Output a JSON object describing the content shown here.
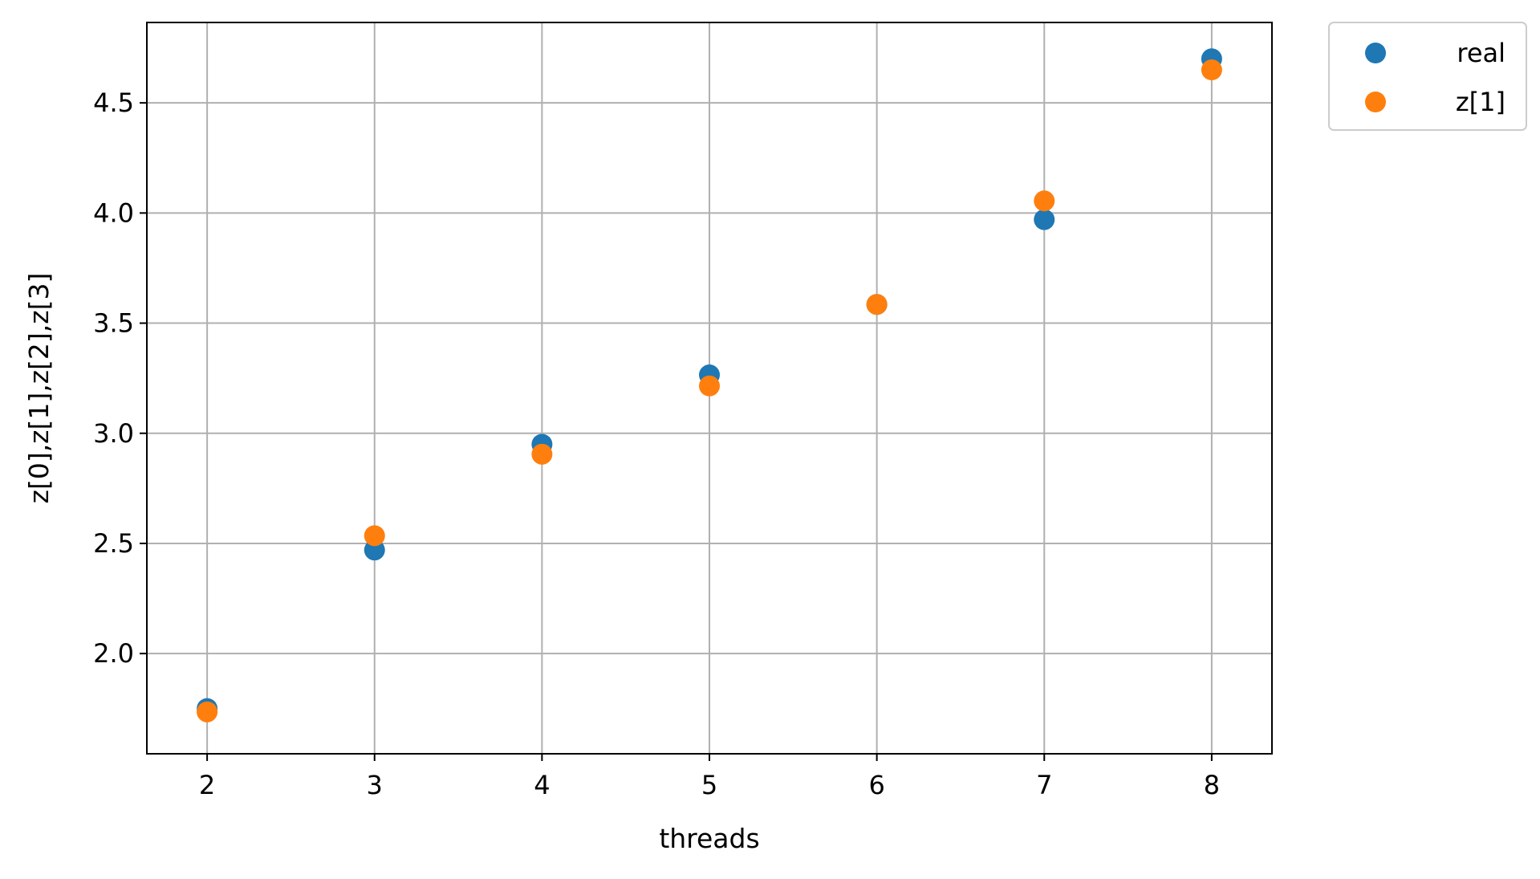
{
  "chart_data": {
    "type": "scatter",
    "title": "",
    "xlabel": "threads",
    "ylabel": "z[0],z[1],z[2],z[3]",
    "xlim": [
      1.64,
      8.36
    ],
    "ylim": [
      1.545,
      4.865
    ],
    "x_ticks": [
      2,
      3,
      4,
      5,
      6,
      7,
      8
    ],
    "x_tick_labels": [
      "2",
      "3",
      "4",
      "5",
      "6",
      "7",
      "8"
    ],
    "y_ticks": [
      2.0,
      2.5,
      3.0,
      3.5,
      4.0,
      4.5
    ],
    "y_tick_labels": [
      "2.0",
      "2.5",
      "3.0",
      "3.5",
      "4.0",
      "4.5"
    ],
    "grid": true,
    "legend_position": "outside-top-right",
    "series": [
      {
        "name": "real",
        "color": "#1f77b4",
        "x": [
          2,
          3,
          4,
          5,
          6,
          7,
          8
        ],
        "y": [
          1.75,
          2.47,
          2.95,
          3.265,
          3.585,
          3.97,
          4.7
        ]
      },
      {
        "name": "z[1]",
        "color": "#ff7f0e",
        "x": [
          2,
          3,
          4,
          5,
          6,
          7,
          8
        ],
        "y": [
          1.735,
          2.535,
          2.905,
          3.215,
          3.585,
          4.055,
          4.65
        ]
      }
    ]
  }
}
